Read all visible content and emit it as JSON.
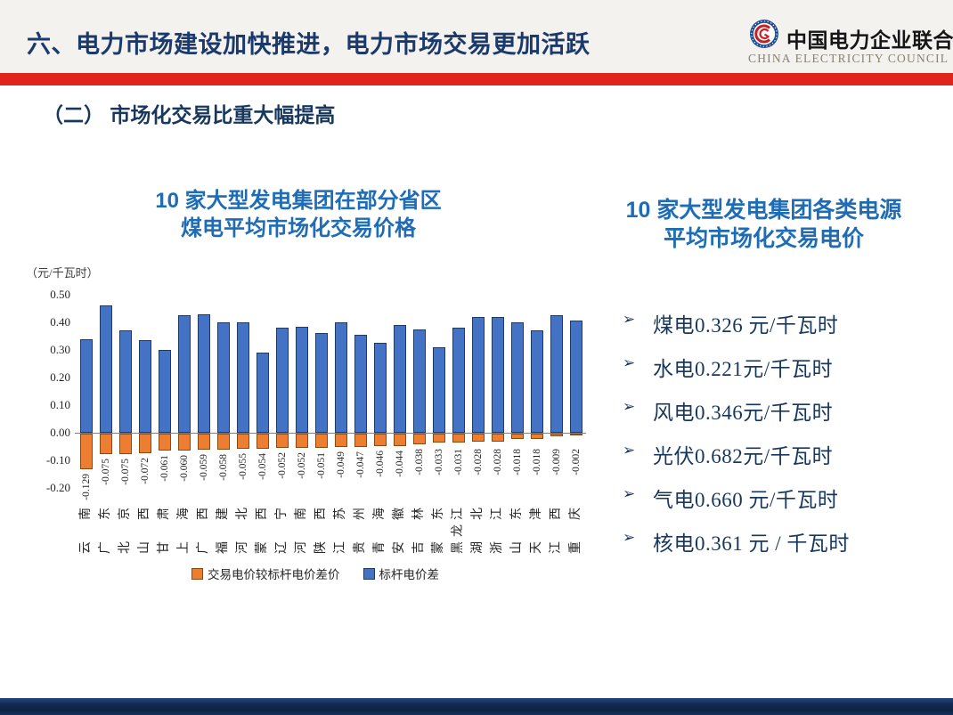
{
  "header": {
    "title": "六、电力市场建设加快推进，电力市场交易更加活跃",
    "logo": {
      "org_cn": "中国电力企业联合会",
      "org_en": "CHINA ELECTRICITY COUNCIL"
    }
  },
  "section_heading": "（二） 市场化交易比重大幅提高",
  "left_chart": {
    "title_line1": "10 家大型发电集团在部分省区",
    "title_line2": "煤电平均市场化交易价格"
  },
  "right_panel": {
    "title_line1": "10 家大型发电集团各类电源",
    "title_line2": "平均市场化交易电价",
    "bullets": [
      "煤电0.326 元/千瓦时",
      "水电0.221元/千瓦时",
      "风电0.346元/千瓦时",
      "光伏0.682元/千瓦时",
      "气电0.660 元/千瓦时",
      "核电0.361 元 / 千瓦时"
    ],
    "bullet_glyph": "➢"
  },
  "chart_data": {
    "type": "bar",
    "title": "10 家大型发电集团在部分省区煤电平均市场化交易价格",
    "ylabel": "（元/千瓦时）",
    "ylim": [
      -0.2,
      0.5
    ],
    "yticks": [
      0.5,
      0.4,
      0.3,
      0.2,
      0.1,
      0.0,
      -0.1,
      -0.2
    ],
    "grid": false,
    "legend_position": "bottom",
    "categories": [
      "云南",
      "广东",
      "北京",
      "山西",
      "甘肃",
      "上海",
      "广西",
      "福建",
      "河北",
      "蒙西",
      "辽宁",
      "河南",
      "陕西",
      "江苏",
      "贵州",
      "青海",
      "安徽",
      "吉林",
      "蒙东",
      "黑龙江",
      "湖北",
      "浙江",
      "山东",
      "天津",
      "江西",
      "重庆"
    ],
    "series": [
      {
        "name": "交易电价较标杆电价差价",
        "color": "#ED7D31",
        "border_color": "#8A4A10",
        "data_labels": true,
        "values": [
          -0.129,
          -0.075,
          -0.075,
          -0.072,
          -0.061,
          -0.06,
          -0.059,
          -0.058,
          -0.055,
          -0.054,
          -0.052,
          -0.052,
          -0.051,
          -0.049,
          -0.047,
          -0.046,
          -0.044,
          -0.038,
          -0.033,
          -0.031,
          -0.028,
          -0.028,
          -0.018,
          -0.018,
          -0.009,
          -0.002
        ]
      },
      {
        "name": "标杆电价差",
        "color": "#4472C4",
        "border_color": "#1E3A66",
        "data_labels": false,
        "values": [
          0.34,
          0.46,
          0.37,
          0.335,
          0.3,
          0.425,
          0.43,
          0.4,
          0.4,
          0.29,
          0.38,
          0.385,
          0.36,
          0.4,
          0.355,
          0.325,
          0.39,
          0.375,
          0.31,
          0.38,
          0.42,
          0.42,
          0.4,
          0.37,
          0.425,
          0.405
        ]
      }
    ]
  },
  "colors": {
    "accent_red": "#E0241C",
    "title_blue": "#1E6CB5",
    "navy_text": "#17375D",
    "header_title_navy": "#1B3A6B",
    "footer_navy": "#132C54",
    "bar_blue": "#4472C4",
    "bar_orange": "#ED7D31"
  }
}
